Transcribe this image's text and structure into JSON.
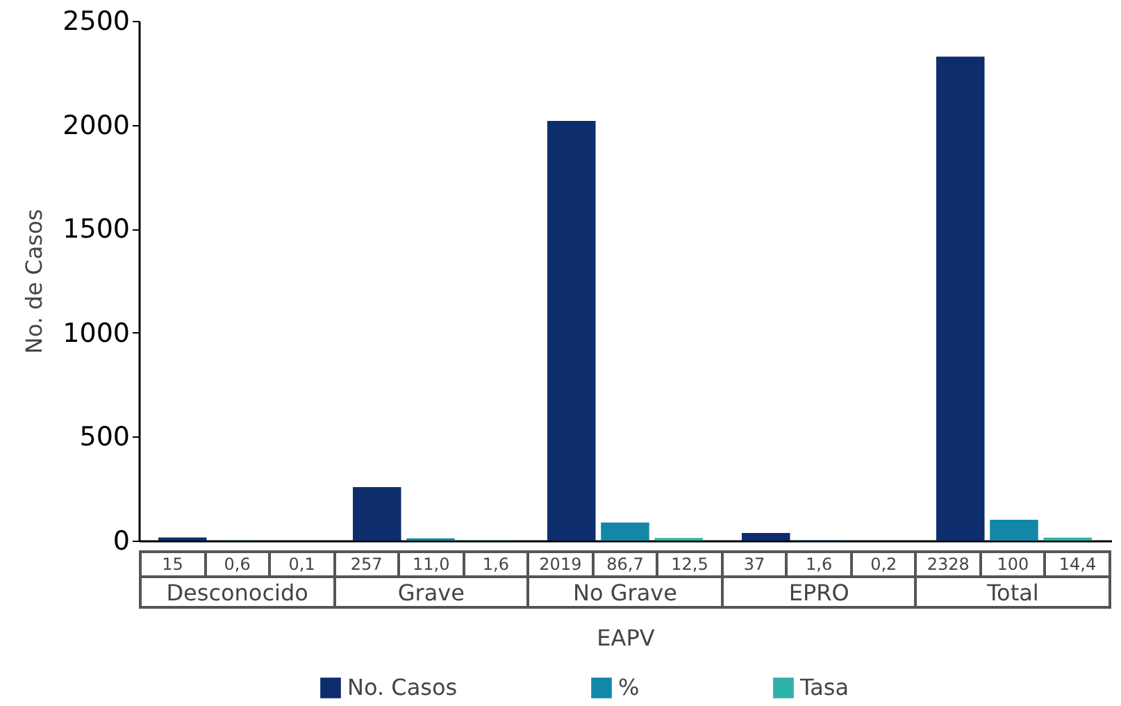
{
  "chart_data": {
    "type": "bar",
    "xlabel": "EAPV",
    "ylabel": "No. de Casos",
    "categories": [
      "Desconocido",
      "Grave",
      "No Grave",
      "EPRO",
      "Total"
    ],
    "series": [
      {
        "name": "No. Casos",
        "color": "#0d2d6c",
        "values": [
          15,
          257,
          2019,
          37,
          2328
        ],
        "value_labels": [
          "15",
          "257",
          "2019",
          "37",
          "2328"
        ]
      },
      {
        "name": "%",
        "color": "#1287a8",
        "values": [
          0.6,
          11.0,
          86.7,
          1.6,
          100
        ],
        "value_labels": [
          "0,6",
          "11,0",
          "86,7",
          "1,6",
          "100"
        ]
      },
      {
        "name": "Tasa",
        "color": "#2eb2a6",
        "values": [
          0.1,
          1.6,
          12.5,
          0.2,
          14.4
        ],
        "value_labels": [
          "0,1",
          "1,6",
          "12,5",
          "0,2",
          "14,4"
        ]
      }
    ],
    "ylim": [
      0,
      2500
    ],
    "yticks": [
      0,
      500,
      1000,
      1500,
      2000,
      2500
    ],
    "grid": false,
    "legend": "bottom"
  }
}
